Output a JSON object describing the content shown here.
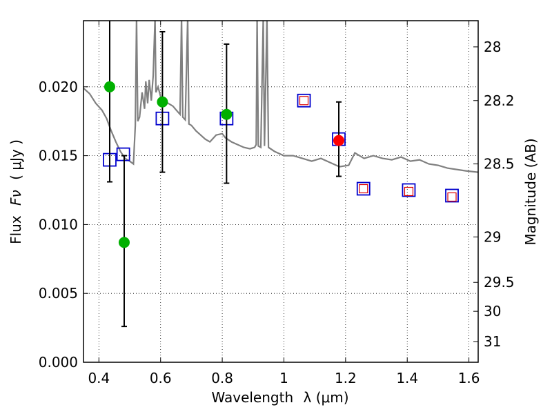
{
  "chart_data": {
    "type": "scatter",
    "title": "",
    "xlabel": "Wavelength",
    "xlabel_math": "λ (μm)",
    "ylabel": "Flux",
    "ylabel_math": "Fν",
    "ylabel_units": "( μJy )",
    "y2label": "Magnitude (AB)",
    "xlim": [
      0.35,
      1.63
    ],
    "ylim": [
      0.0,
      0.0248
    ],
    "grid": true,
    "x_ticks": [
      0.4,
      0.6,
      0.8,
      1.0,
      1.2,
      1.4,
      1.6
    ],
    "x_tick_labels": [
      "0.4",
      "0.6",
      "0.8",
      "1",
      "1.2",
      "1.4",
      "1.6"
    ],
    "y_ticks": [
      0.0,
      0.005,
      0.01,
      0.015,
      0.02
    ],
    "y_tick_labels": [
      "0.000",
      "0.005",
      "0.010",
      "0.015",
      "0.020"
    ],
    "y2_ticks": [
      {
        "label": "28",
        "flux": 0.0229
      },
      {
        "label": "28.2",
        "flux": 0.019
      },
      {
        "label": "28.5",
        "flux": 0.0144
      },
      {
        "label": "29",
        "flux": 0.0091
      },
      {
        "label": "29.5",
        "flux": 0.0058
      },
      {
        "label": "30",
        "flux": 0.0037
      },
      {
        "label": "31",
        "flux": 0.0015
      }
    ],
    "series": [
      {
        "name": "observed (green)",
        "marker": "circle",
        "color": "#00b000",
        "points": [
          {
            "x": 0.435,
            "y": 0.02,
            "yerr_low": 0.0131,
            "yerr_high": 0.025
          },
          {
            "x": 0.482,
            "y": 0.0087,
            "yerr_low": 0.0026,
            "yerr_high": 0.015
          },
          {
            "x": 0.606,
            "y": 0.0189,
            "yerr_low": 0.0138,
            "yerr_high": 0.024
          },
          {
            "x": 0.814,
            "y": 0.018,
            "yerr_low": 0.013,
            "yerr_high": 0.0231
          }
        ]
      },
      {
        "name": "observed (red)",
        "marker": "circle",
        "color": "#ff0000",
        "points": [
          {
            "x": 1.178,
            "y": 0.0161,
            "yerr_low": 0.0135,
            "yerr_high": 0.0189
          }
        ]
      },
      {
        "name": "model photometry (blue squares)",
        "marker": "square",
        "color": "#0000cc",
        "points": [
          {
            "x": 0.435,
            "y": 0.0147
          },
          {
            "x": 0.479,
            "y": 0.0151
          },
          {
            "x": 0.606,
            "y": 0.0177
          },
          {
            "x": 0.814,
            "y": 0.0177
          },
          {
            "x": 1.065,
            "y": 0.019
          },
          {
            "x": 1.178,
            "y": 0.0162
          },
          {
            "x": 1.258,
            "y": 0.0126
          },
          {
            "x": 1.405,
            "y": 0.0125
          },
          {
            "x": 1.545,
            "y": 0.0121
          }
        ]
      },
      {
        "name": "inner squares (red)",
        "marker": "square-small",
        "color": "#dd0000",
        "points": [
          {
            "x": 1.065,
            "y": 0.019
          },
          {
            "x": 1.258,
            "y": 0.0126
          },
          {
            "x": 1.405,
            "y": 0.0124
          },
          {
            "x": 1.545,
            "y": 0.012
          }
        ]
      },
      {
        "name": "model spectrum (gray line)",
        "marker": "line",
        "color": "#808080",
        "points": [
          [
            0.35,
            0.0199
          ],
          [
            0.37,
            0.0195
          ],
          [
            0.39,
            0.0188
          ],
          [
            0.41,
            0.0183
          ],
          [
            0.425,
            0.0177
          ],
          [
            0.44,
            0.0168
          ],
          [
            0.455,
            0.016
          ],
          [
            0.47,
            0.0153
          ],
          [
            0.485,
            0.0148
          ],
          [
            0.5,
            0.0146
          ],
          [
            0.512,
            0.0144
          ],
          [
            0.518,
            0.0172
          ],
          [
            0.522,
            0.025
          ],
          [
            0.526,
            0.0175
          ],
          [
            0.532,
            0.0178
          ],
          [
            0.54,
            0.0196
          ],
          [
            0.548,
            0.0184
          ],
          [
            0.552,
            0.0204
          ],
          [
            0.558,
            0.0188
          ],
          [
            0.563,
            0.0205
          ],
          [
            0.57,
            0.019
          ],
          [
            0.576,
            0.0208
          ],
          [
            0.582,
            0.025
          ],
          [
            0.585,
            0.0196
          ],
          [
            0.592,
            0.02
          ],
          [
            0.6,
            0.0193
          ],
          [
            0.612,
            0.019
          ],
          [
            0.625,
            0.0188
          ],
          [
            0.64,
            0.0186
          ],
          [
            0.655,
            0.0182
          ],
          [
            0.663,
            0.018
          ],
          [
            0.668,
            0.025
          ],
          [
            0.672,
            0.0178
          ],
          [
            0.68,
            0.0176
          ],
          [
            0.688,
            0.025
          ],
          [
            0.692,
            0.0173
          ],
          [
            0.7,
            0.0172
          ],
          [
            0.715,
            0.0168
          ],
          [
            0.73,
            0.0165
          ],
          [
            0.745,
            0.0162
          ],
          [
            0.76,
            0.016
          ],
          [
            0.78,
            0.0165
          ],
          [
            0.8,
            0.0166
          ],
          [
            0.81,
            0.0163
          ],
          [
            0.83,
            0.016
          ],
          [
            0.85,
            0.0158
          ],
          [
            0.87,
            0.0156
          ],
          [
            0.89,
            0.0155
          ],
          [
            0.905,
            0.0156
          ],
          [
            0.91,
            0.0158
          ],
          [
            0.913,
            0.025
          ],
          [
            0.917,
            0.0157
          ],
          [
            0.925,
            0.0156
          ],
          [
            0.933,
            0.025
          ],
          [
            0.937,
            0.0157
          ],
          [
            0.945,
            0.025
          ],
          [
            0.95,
            0.0156
          ],
          [
            0.97,
            0.0153
          ],
          [
            1.0,
            0.015
          ],
          [
            1.03,
            0.015
          ],
          [
            1.06,
            0.0148
          ],
          [
            1.09,
            0.0146
          ],
          [
            1.12,
            0.0148
          ],
          [
            1.15,
            0.0145
          ],
          [
            1.18,
            0.0142
          ],
          [
            1.21,
            0.0143
          ],
          [
            1.23,
            0.0152
          ],
          [
            1.26,
            0.0148
          ],
          [
            1.29,
            0.015
          ],
          [
            1.32,
            0.0148
          ],
          [
            1.35,
            0.0147
          ],
          [
            1.38,
            0.0149
          ],
          [
            1.41,
            0.0146
          ],
          [
            1.44,
            0.0147
          ],
          [
            1.47,
            0.0144
          ],
          [
            1.5,
            0.0143
          ],
          [
            1.53,
            0.0141
          ],
          [
            1.56,
            0.014
          ],
          [
            1.59,
            0.0139
          ],
          [
            1.63,
            0.0138
          ]
        ]
      }
    ]
  }
}
